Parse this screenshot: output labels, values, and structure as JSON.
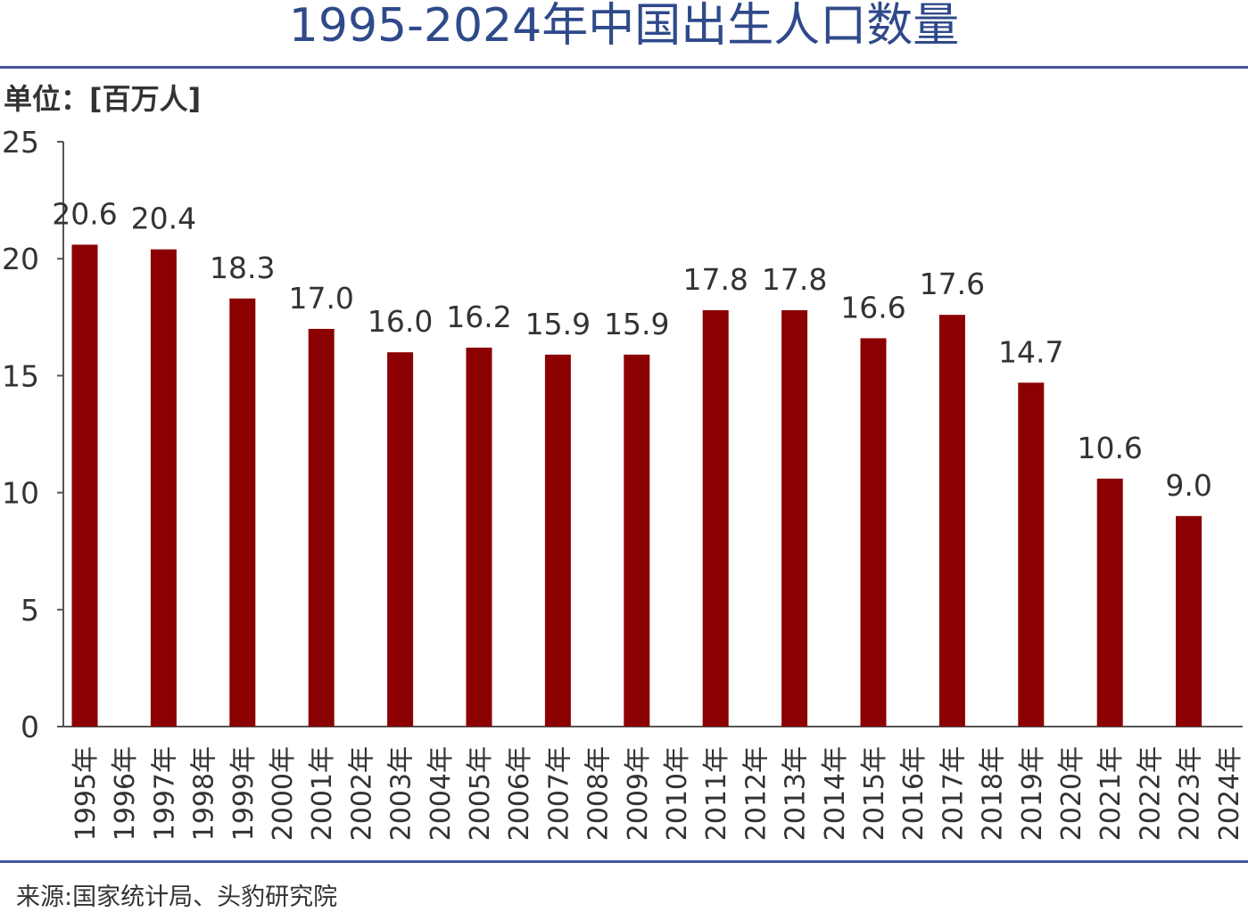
{
  "page": {
    "title": "1995-2024年中国出生人口数量",
    "unit_label": "单位：[百万人]",
    "source": "来源:国家统计局、头豹研究院"
  },
  "colors": {
    "bar": "#8b0000",
    "title": "#2f4a8a",
    "rule": "#44559a",
    "text": "#333333",
    "axis": "#555555"
  },
  "chart_data": {
    "type": "bar",
    "title": "1995-2024年中国出生人口数量",
    "ylabel": "单位：[百万人]",
    "xlabel": "",
    "ylim": [
      0,
      25
    ],
    "yticks": [
      0,
      5,
      10,
      15,
      20,
      25
    ],
    "grid": false,
    "legend": "none",
    "categories": [
      "1995年",
      "1996年",
      "1997年",
      "1998年",
      "1999年",
      "2000年",
      "2001年",
      "2002年",
      "2003年",
      "2004年",
      "2005年",
      "2006年",
      "2007年",
      "2008年",
      "2009年",
      "2010年",
      "2011年",
      "2012年",
      "2013年",
      "2014年",
      "2015年",
      "2016年",
      "2017年",
      "2018年",
      "2019年",
      "2020年",
      "2021年",
      "2022年",
      "2023年",
      "2024年"
    ],
    "values": [
      20.6,
      null,
      20.4,
      null,
      18.3,
      null,
      17.0,
      null,
      16.0,
      null,
      16.2,
      null,
      15.9,
      null,
      15.9,
      null,
      17.8,
      null,
      17.8,
      null,
      16.6,
      null,
      17.6,
      null,
      14.7,
      null,
      10.6,
      null,
      9.0,
      null
    ],
    "data_labels": [
      "20.6",
      null,
      "20.4",
      null,
      "18.3",
      null,
      "17.0",
      null,
      "16.0",
      null,
      "16.2",
      null,
      "15.9",
      null,
      "15.9",
      null,
      "17.8",
      null,
      "17.8",
      null,
      "16.6",
      null,
      "17.6",
      null,
      "14.7",
      null,
      "10.6",
      null,
      "9.0",
      null
    ]
  }
}
